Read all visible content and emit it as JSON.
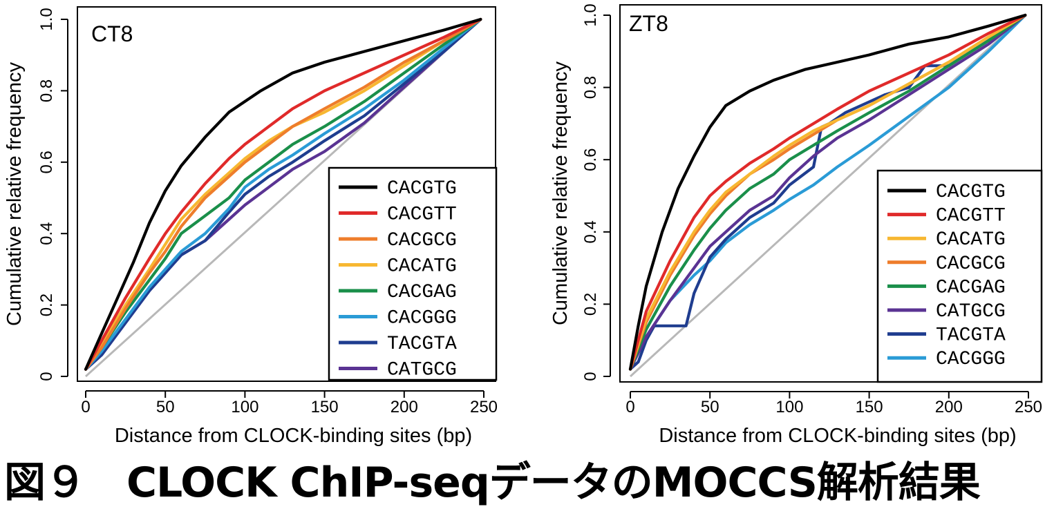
{
  "caption": "図９　CLOCK ChIP-seqデータのMOCCS解析結果",
  "chart_data": [
    {
      "type": "line",
      "panel_label": "CT8",
      "xlabel": "Distance from CLOCK-binding sites (bp)",
      "ylabel": "Cumulative relative frequency",
      "xlim": [
        0,
        250
      ],
      "ylim": [
        0,
        1.0
      ],
      "x_ticks": [
        0,
        50,
        100,
        150,
        200,
        250
      ],
      "y_ticks": [
        "0",
        "0.2",
        "0.4",
        "0.6",
        "0.8",
        "1.0"
      ],
      "grid": false,
      "legend_position": "bottom-right",
      "reference_line": {
        "x": [
          0,
          248
        ],
        "y": [
          0,
          1.0
        ],
        "color": "#b8b8b8"
      },
      "series": [
        {
          "name": "CACGTG",
          "color": "#000000",
          "x": [
            0,
            10,
            20,
            30,
            40,
            50,
            60,
            75,
            90,
            110,
            130,
            150,
            175,
            200,
            225,
            248
          ],
          "y": [
            0.02,
            0.12,
            0.22,
            0.32,
            0.43,
            0.52,
            0.59,
            0.67,
            0.74,
            0.8,
            0.85,
            0.88,
            0.91,
            0.94,
            0.97,
            1.0
          ]
        },
        {
          "name": "CACGTT",
          "color": "#e02a2a",
          "x": [
            0,
            10,
            25,
            40,
            50,
            60,
            75,
            90,
            100,
            115,
            130,
            150,
            175,
            200,
            225,
            248
          ],
          "y": [
            0.02,
            0.1,
            0.22,
            0.33,
            0.4,
            0.46,
            0.54,
            0.61,
            0.65,
            0.7,
            0.75,
            0.8,
            0.85,
            0.9,
            0.95,
            1.0
          ]
        },
        {
          "name": "CACGCG",
          "color": "#ee7d2b",
          "x": [
            0,
            10,
            25,
            40,
            50,
            60,
            75,
            90,
            100,
            115,
            130,
            150,
            175,
            200,
            225,
            248
          ],
          "y": [
            0.02,
            0.08,
            0.19,
            0.29,
            0.35,
            0.42,
            0.5,
            0.56,
            0.6,
            0.65,
            0.7,
            0.75,
            0.81,
            0.88,
            0.94,
            1.0
          ]
        },
        {
          "name": "CACATG",
          "color": "#f7b731",
          "x": [
            0,
            10,
            25,
            40,
            50,
            60,
            75,
            90,
            100,
            115,
            130,
            150,
            175,
            200,
            225,
            248
          ],
          "y": [
            0.02,
            0.09,
            0.2,
            0.3,
            0.37,
            0.44,
            0.51,
            0.57,
            0.61,
            0.66,
            0.7,
            0.74,
            0.8,
            0.87,
            0.94,
            1.0
          ]
        },
        {
          "name": "CACGAG",
          "color": "#1a8f4a",
          "x": [
            0,
            10,
            25,
            40,
            50,
            60,
            75,
            90,
            100,
            115,
            130,
            150,
            175,
            200,
            225,
            248
          ],
          "y": [
            0.02,
            0.08,
            0.18,
            0.27,
            0.33,
            0.4,
            0.45,
            0.5,
            0.55,
            0.6,
            0.65,
            0.7,
            0.77,
            0.85,
            0.93,
            1.0
          ]
        },
        {
          "name": "CACGGG",
          "color": "#2a9bd6",
          "x": [
            0,
            10,
            25,
            40,
            50,
            60,
            75,
            90,
            100,
            115,
            130,
            150,
            175,
            200,
            225,
            248
          ],
          "y": [
            0.02,
            0.07,
            0.16,
            0.25,
            0.3,
            0.35,
            0.4,
            0.47,
            0.53,
            0.58,
            0.62,
            0.68,
            0.75,
            0.83,
            0.92,
            1.0
          ]
        },
        {
          "name": "TACGTA",
          "color": "#1f3d8f",
          "x": [
            0,
            10,
            25,
            40,
            50,
            60,
            75,
            90,
            100,
            115,
            130,
            150,
            175,
            200,
            225,
            248
          ],
          "y": [
            0.02,
            0.06,
            0.15,
            0.24,
            0.29,
            0.34,
            0.38,
            0.46,
            0.51,
            0.56,
            0.6,
            0.66,
            0.73,
            0.82,
            0.91,
            1.0
          ]
        },
        {
          "name": "CATGCG",
          "color": "#5a3393",
          "x": [
            0,
            10,
            25,
            40,
            50,
            60,
            75,
            90,
            100,
            115,
            130,
            150,
            175,
            200,
            225,
            248
          ],
          "y": [
            0.02,
            0.06,
            0.15,
            0.24,
            0.29,
            0.34,
            0.38,
            0.44,
            0.48,
            0.53,
            0.58,
            0.63,
            0.71,
            0.81,
            0.91,
            1.0
          ]
        }
      ]
    },
    {
      "type": "line",
      "panel_label": "ZT8",
      "xlabel": "Distance from CLOCK-binding sites (bp)",
      "ylabel": "Cumulative relative frequency",
      "xlim": [
        0,
        250
      ],
      "ylim": [
        0,
        1.0
      ],
      "x_ticks": [
        0,
        50,
        100,
        150,
        200,
        250
      ],
      "y_ticks": [
        "0",
        "0.2",
        "0.4",
        "0.6",
        "0.8",
        "1.0"
      ],
      "grid": false,
      "legend_position": "bottom-right",
      "reference_line": {
        "x": [
          0,
          248
        ],
        "y": [
          0,
          1.0
        ],
        "color": "#b8b8b8"
      },
      "series": [
        {
          "name": "CACGTG",
          "color": "#000000",
          "x": [
            0,
            5,
            10,
            20,
            30,
            40,
            50,
            60,
            75,
            90,
            110,
            130,
            150,
            175,
            200,
            225,
            248
          ],
          "y": [
            0.02,
            0.14,
            0.25,
            0.4,
            0.52,
            0.61,
            0.69,
            0.75,
            0.79,
            0.82,
            0.85,
            0.87,
            0.89,
            0.92,
            0.94,
            0.97,
            1.0
          ]
        },
        {
          "name": "CACGTT",
          "color": "#e02a2a",
          "x": [
            0,
            10,
            25,
            40,
            50,
            60,
            75,
            90,
            100,
            115,
            130,
            150,
            175,
            200,
            225,
            248
          ],
          "y": [
            0.02,
            0.18,
            0.32,
            0.44,
            0.5,
            0.54,
            0.59,
            0.63,
            0.66,
            0.7,
            0.74,
            0.79,
            0.84,
            0.89,
            0.95,
            1.0
          ]
        },
        {
          "name": "CACATG",
          "color": "#f7b731",
          "x": [
            0,
            10,
            25,
            40,
            50,
            60,
            75,
            90,
            100,
            115,
            130,
            150,
            175,
            200,
            225,
            248
          ],
          "y": [
            0.02,
            0.16,
            0.29,
            0.4,
            0.46,
            0.51,
            0.56,
            0.61,
            0.64,
            0.68,
            0.71,
            0.75,
            0.81,
            0.87,
            0.94,
            1.0
          ]
        },
        {
          "name": "CACGCG",
          "color": "#ee7d2b",
          "x": [
            0,
            10,
            25,
            40,
            50,
            60,
            75,
            90,
            100,
            115,
            130,
            150,
            175,
            200,
            225,
            248
          ],
          "y": [
            0.02,
            0.15,
            0.28,
            0.39,
            0.45,
            0.5,
            0.56,
            0.6,
            0.63,
            0.67,
            0.71,
            0.75,
            0.81,
            0.87,
            0.94,
            1.0
          ]
        },
        {
          "name": "CACGAG",
          "color": "#1a8f4a",
          "x": [
            0,
            10,
            25,
            40,
            50,
            60,
            75,
            90,
            100,
            115,
            130,
            150,
            175,
            200,
            225,
            248
          ],
          "y": [
            0.02,
            0.13,
            0.25,
            0.35,
            0.41,
            0.46,
            0.52,
            0.56,
            0.6,
            0.64,
            0.68,
            0.73,
            0.79,
            0.86,
            0.93,
            1.0
          ]
        },
        {
          "name": "CATGCG",
          "color": "#5a3393",
          "x": [
            0,
            10,
            25,
            40,
            50,
            60,
            75,
            90,
            100,
            115,
            130,
            150,
            175,
            200,
            225,
            248
          ],
          "y": [
            0.02,
            0.11,
            0.21,
            0.3,
            0.36,
            0.4,
            0.46,
            0.5,
            0.55,
            0.61,
            0.66,
            0.71,
            0.78,
            0.85,
            0.92,
            1.0
          ]
        },
        {
          "name": "TACGTA",
          "color": "#1f3d8f",
          "x": [
            0,
            5,
            10,
            15,
            20,
            25,
            35,
            40,
            50,
            60,
            75,
            90,
            100,
            115,
            120,
            125,
            135,
            150,
            160,
            175,
            185,
            200,
            225,
            248
          ],
          "y": [
            0.02,
            0.04,
            0.1,
            0.14,
            0.14,
            0.14,
            0.14,
            0.23,
            0.33,
            0.38,
            0.44,
            0.48,
            0.53,
            0.58,
            0.69,
            0.7,
            0.73,
            0.76,
            0.78,
            0.8,
            0.86,
            0.86,
            0.93,
            1.0
          ]
        },
        {
          "name": "CACGGG",
          "color": "#2a9bd6",
          "x": [
            0,
            10,
            25,
            40,
            50,
            60,
            75,
            90,
            100,
            115,
            130,
            150,
            175,
            200,
            225,
            248
          ],
          "y": [
            0.02,
            0.11,
            0.21,
            0.28,
            0.32,
            0.37,
            0.42,
            0.46,
            0.49,
            0.53,
            0.58,
            0.64,
            0.72,
            0.8,
            0.9,
            1.0
          ]
        }
      ]
    }
  ]
}
